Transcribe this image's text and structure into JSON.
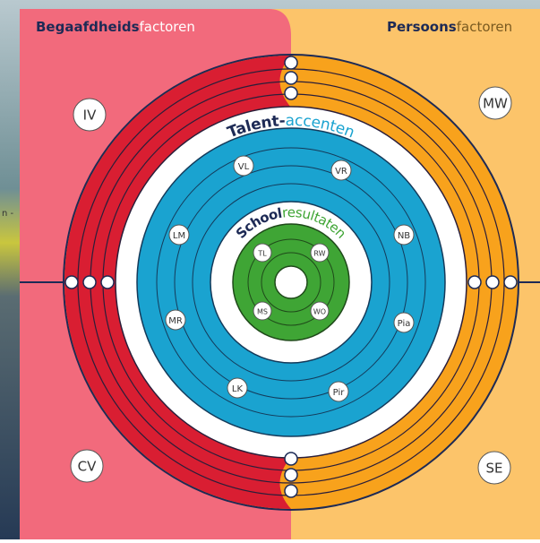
{
  "background_text": "n -",
  "header": {
    "left": {
      "bold": "Begaafdheids",
      "light": "factoren"
    },
    "right": {
      "bold": "Persoons",
      "light": "factoren"
    }
  },
  "rings": {
    "talent": {
      "bold": "Talent-",
      "light": "accenten"
    },
    "school": {
      "bold": "School",
      "light": "resultaten"
    }
  },
  "corners": [
    "IV",
    "MW",
    "CV",
    "SE"
  ],
  "talent_labels": [
    "VL",
    "VR",
    "LM",
    "NB",
    "MR",
    "Pia",
    "LK",
    "Pir"
  ],
  "school_labels": [
    "TL",
    "RW",
    "MS",
    "WO"
  ]
}
